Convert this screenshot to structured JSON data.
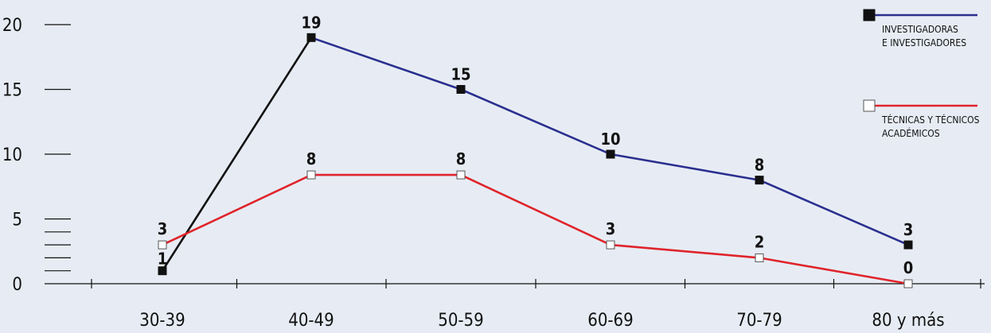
{
  "chart_data": {
    "type": "line",
    "categories": [
      "30-39",
      "40-49",
      "50-59",
      "60-69",
      "70-79",
      "80 y más"
    ],
    "yticks": [
      0,
      5,
      10,
      15,
      20
    ],
    "ylim": [
      0,
      20
    ],
    "grid": false,
    "legend_position": "top-right",
    "series": [
      {
        "name": "INVESTIGADORAS E INVESTIGADORES",
        "name_lines": [
          "INVESTIGADORAS",
          "E INVESTIGADORES"
        ],
        "values": [
          1,
          19,
          15,
          10,
          8,
          3
        ],
        "labels": [
          "1",
          "19",
          "15",
          "10",
          "8",
          "3"
        ],
        "line_color": "#2b2f8f",
        "first_segment_color": "#111111",
        "marker": "filled-square",
        "marker_color": "#111111"
      },
      {
        "name": "TÉCNICAS Y TÉCNICOS ACADÉMICOS",
        "name_lines": [
          "TÉCNICAS Y TÉCNICOS",
          "ACADÉMICOS"
        ],
        "values": [
          3,
          8.4,
          8.4,
          3,
          2,
          0
        ],
        "labels": [
          "3",
          "8",
          "8",
          "3",
          "2",
          "0"
        ],
        "line_color": "#e0242b",
        "marker": "hollow-square",
        "marker_color": "#ffffff"
      }
    ]
  }
}
